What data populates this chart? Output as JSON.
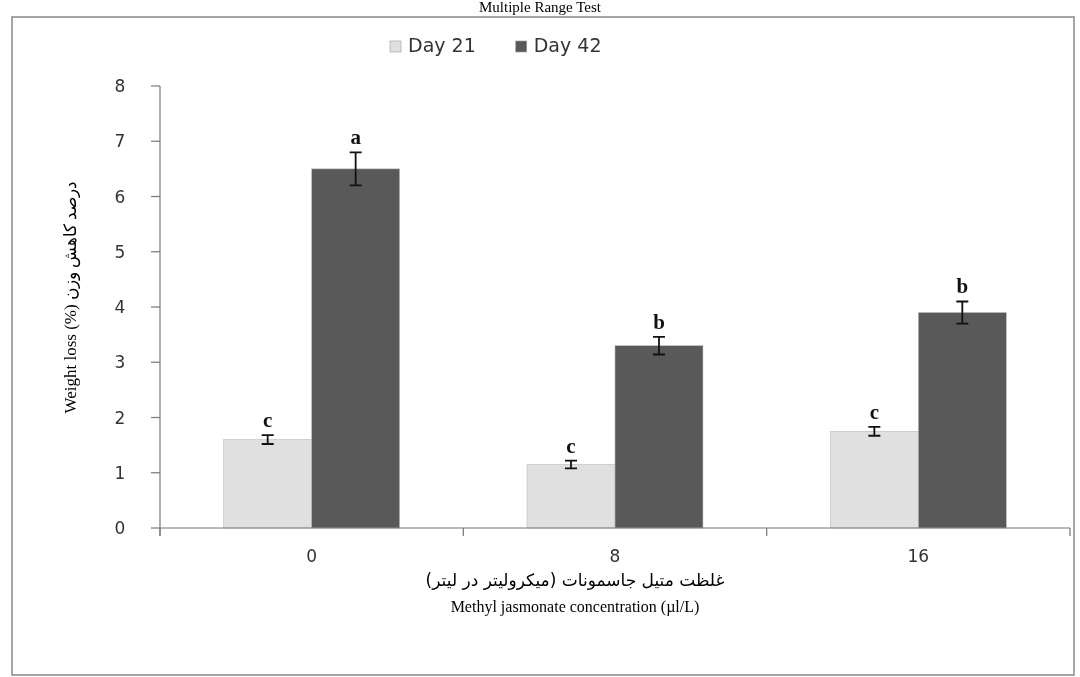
{
  "chart_data": {
    "type": "bar",
    "title": "Multiple Range Test",
    "categories": [
      "0",
      "8",
      "16"
    ],
    "series": [
      {
        "name": "Day 21",
        "color": "#e0e0e0",
        "values": [
          1.6,
          1.15,
          1.75
        ],
        "errors": [
          0.08,
          0.07,
          0.08
        ]
      },
      {
        "name": "Day 42",
        "color": "#595959",
        "values": [
          6.5,
          3.3,
          3.9
        ],
        "errors": [
          0.3,
          0.16,
          0.2
        ]
      }
    ],
    "ylim": [
      0,
      8
    ],
    "yticks": [
      0,
      1,
      2,
      3,
      4,
      5,
      6,
      7,
      8
    ],
    "ylabel": "Weight loss (%) درصد کاهش وزن",
    "xlabel": "غلظت متیل جاسمونات (میکرولیتر در لیتر)\nMethyl jasmonate concentration (µl/L)",
    "annotations": [
      {
        "text": "c",
        "x": "0",
        "y": 1.6
      },
      {
        "text": "a",
        "x": "0",
        "y": 6.5
      },
      {
        "text": "c",
        "x": "8",
        "y": 1.15
      },
      {
        "text": "b",
        "x": "8",
        "y": 3.3
      },
      {
        "text": "c",
        "x": "16",
        "y": 1.75
      },
      {
        "text": "b",
        "x": "16",
        "y": 3.9
      }
    ],
    "grid": false,
    "legend": "top"
  }
}
